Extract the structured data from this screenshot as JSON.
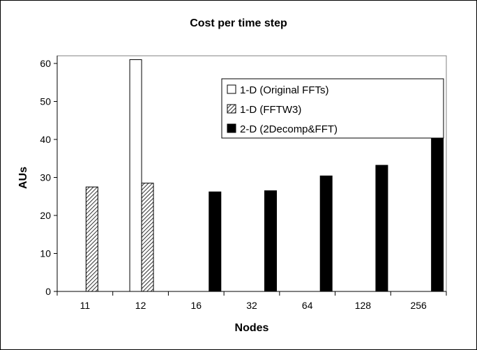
{
  "chart_data": {
    "type": "bar",
    "title": "Cost per time step",
    "xlabel": "Nodes",
    "ylabel": "AUs",
    "categories": [
      "11",
      "12",
      "16",
      "32",
      "64",
      "128",
      "256"
    ],
    "ylim": [
      0,
      60
    ],
    "yticks": [
      0,
      10,
      20,
      30,
      40,
      50,
      60
    ],
    "legend_position": "upper-right-inside",
    "series": [
      {
        "name": "1-D (Original FFTs)",
        "fill": "white-outline",
        "values": [
          null,
          61,
          null,
          null,
          null,
          null,
          null
        ]
      },
      {
        "name": "1-D (FFTW3)",
        "fill": "diagonal-hatch",
        "values": [
          27.5,
          28.5,
          null,
          null,
          null,
          null,
          null
        ]
      },
      {
        "name": "2-D (2Decomp&FFT)",
        "fill": "black",
        "values": [
          null,
          null,
          26.2,
          26.5,
          30.4,
          33.2,
          40.3
        ]
      }
    ]
  }
}
